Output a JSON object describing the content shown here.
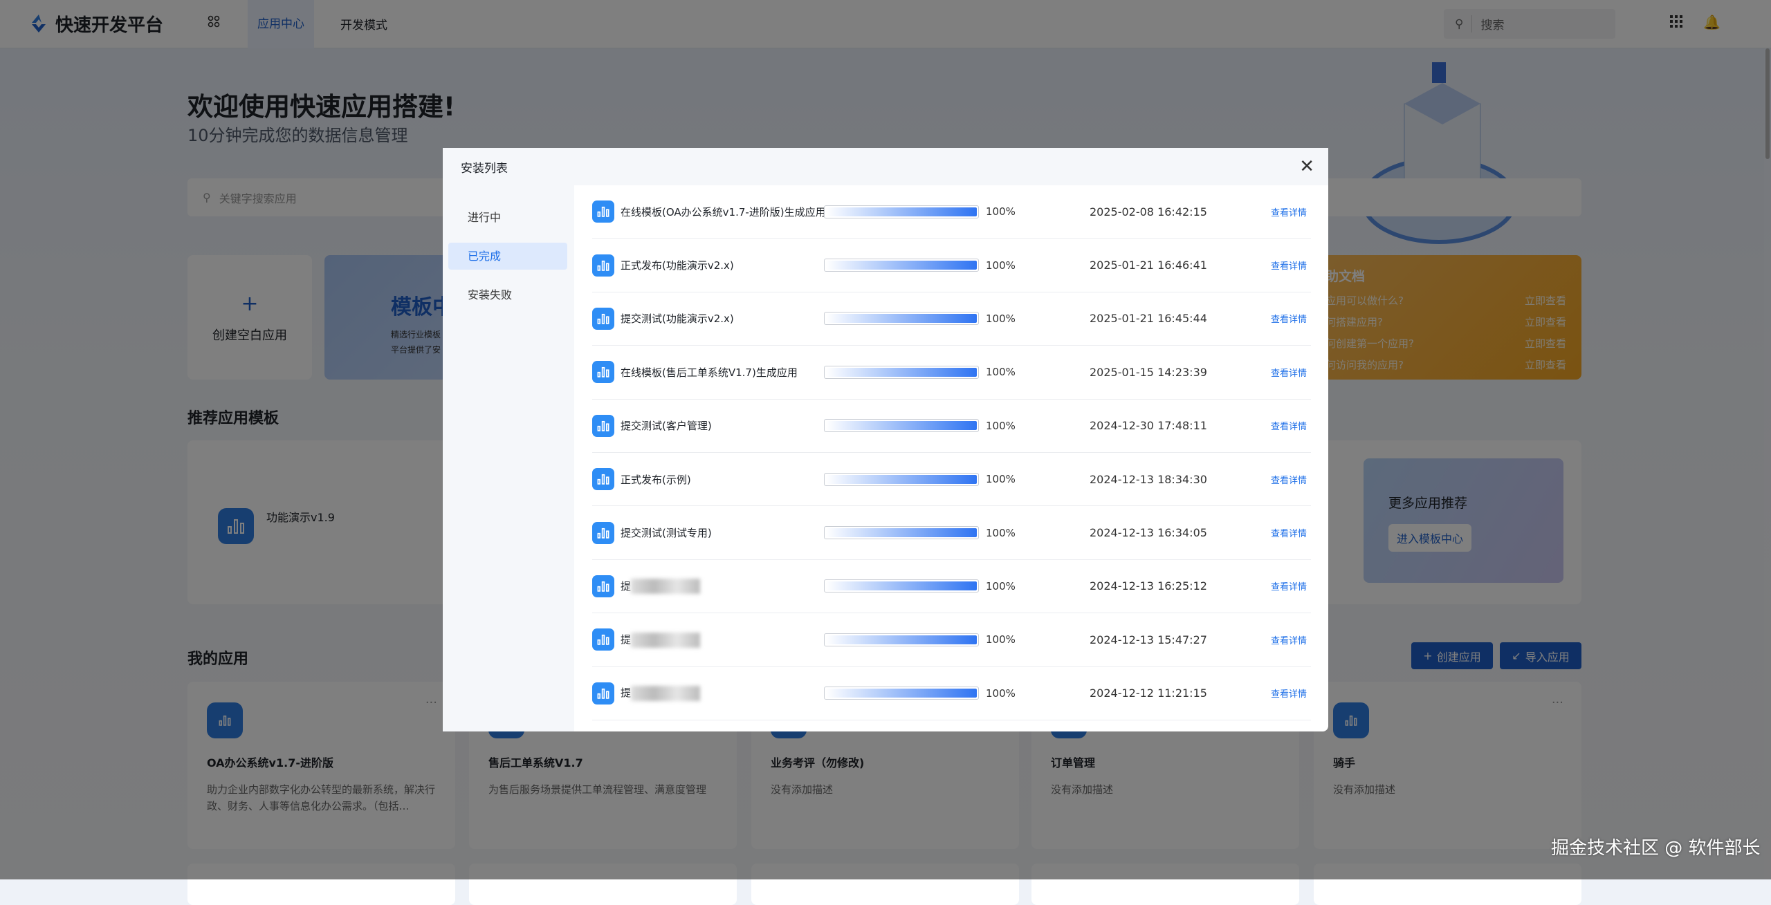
{
  "header": {
    "brand": "快速开发平台",
    "nav": [
      "应用中心",
      "开发模式"
    ],
    "search_placeholder": "搜索"
  },
  "hero": {
    "title": "欢迎使用快速应用搭建!",
    "subtitle": "10分钟完成您的数据信息管理",
    "search_placeholder": "关键字搜索应用"
  },
  "quick": {
    "create_blank": "创建空白应用",
    "template_title": "模板中",
    "template_desc": [
      "精选行业模板",
      "平台提供了安"
    ]
  },
  "help": {
    "title": "助文档",
    "items": [
      {
        "q": "应用可以做什么?",
        "a": "立即查看"
      },
      {
        "q": "何搭建应用?",
        "a": "立即查看"
      },
      {
        "q": "何创建第一个应用?",
        "a": "立即查看"
      },
      {
        "q": "何访问我的应用?",
        "a": "立即查看"
      }
    ]
  },
  "recommend": {
    "title": "推荐应用模板",
    "items": [
      {
        "name": "功能演示v1.9"
      }
    ],
    "more_title": "更多应用推荐",
    "more_button": "进入模板中心"
  },
  "my_apps": {
    "title": "我的应用",
    "create_button": "创建应用",
    "import_button": "导入应用",
    "apps": [
      {
        "name": "OA办公系统v1.7-进阶版",
        "desc": "助力企业内部数字化办公转型的最新系统，解决行政、财务、人事等信息化办公需求。（包括…"
      },
      {
        "name": "售后工单系统V1.7",
        "desc": "为售后服务场景提供工单流程管理、满意度管理"
      },
      {
        "name": "业务考评（勿修改)",
        "desc": "没有添加描述"
      },
      {
        "name": "订单管理",
        "desc": "没有添加描述"
      },
      {
        "name": "骑手",
        "desc": "没有添加描述"
      }
    ]
  },
  "modal": {
    "title": "安装列表",
    "tabs": [
      "进行中",
      "已完成",
      "安装失败"
    ],
    "active_tab": 1,
    "link_label": "查看详情",
    "rows": [
      {
        "name": "在线模板(OA办公系统v1.7-进阶版)生成应用",
        "progress": 100,
        "pct": "100%",
        "time": "2025-02-08 16:42:15"
      },
      {
        "name": "正式发布(功能演示v2.x)",
        "progress": 100,
        "pct": "100%",
        "time": "2025-01-21 16:46:41"
      },
      {
        "name": "提交测试(功能演示v2.x)",
        "progress": 100,
        "pct": "100%",
        "time": "2025-01-21 16:45:44"
      },
      {
        "name": "在线模板(售后工单系统V1.7)生成应用",
        "progress": 100,
        "pct": "100%",
        "time": "2025-01-15 14:23:39"
      },
      {
        "name": "提交测试(客户管理)",
        "progress": 100,
        "pct": "100%",
        "time": "2024-12-30 17:48:11"
      },
      {
        "name": "正式发布(示例)",
        "progress": 100,
        "pct": "100%",
        "time": "2024-12-13 18:34:30"
      },
      {
        "name": "提交测试(测试专用)",
        "progress": 100,
        "pct": "100%",
        "time": "2024-12-13 16:34:05"
      },
      {
        "name": "提",
        "blurred": true,
        "progress": 100,
        "pct": "100%",
        "time": "2024-12-13 16:25:12"
      },
      {
        "name": "提",
        "blurred": true,
        "progress": 100,
        "pct": "100%",
        "time": "2024-12-13 15:47:27"
      },
      {
        "name": "提",
        "blurred": true,
        "progress": 100,
        "pct": "100%",
        "time": "2024-12-12 11:21:15"
      }
    ]
  },
  "watermark": "掘金技术社区 @ 软件部长",
  "colors": {
    "accent": "#1e5ec8",
    "link": "#1e6fe8",
    "app_icon": "#2e8df5",
    "help_card": "#f5a623"
  }
}
